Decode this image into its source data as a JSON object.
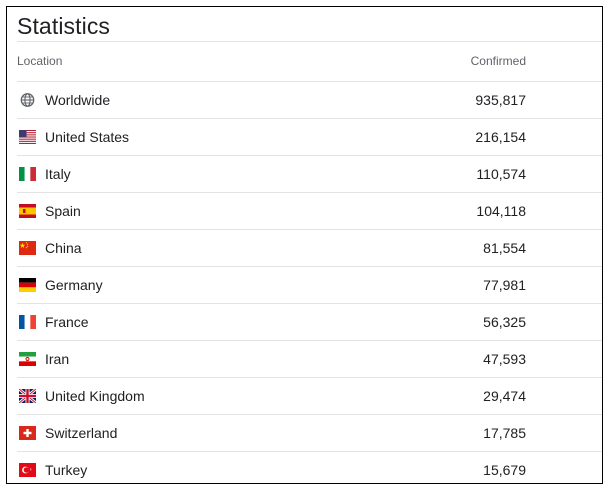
{
  "title": "Statistics",
  "columns": {
    "location": "Location",
    "confirmed": "Confirmed"
  },
  "rows": [
    {
      "location": "Worldwide",
      "confirmed": "935,817",
      "icon": "globe-icon"
    },
    {
      "location": "United States",
      "confirmed": "216,154",
      "icon": "flag-us-icon"
    },
    {
      "location": "Italy",
      "confirmed": "110,574",
      "icon": "flag-it-icon"
    },
    {
      "location": "Spain",
      "confirmed": "104,118",
      "icon": "flag-es-icon"
    },
    {
      "location": "China",
      "confirmed": "81,554",
      "icon": "flag-cn-icon"
    },
    {
      "location": "Germany",
      "confirmed": "77,981",
      "icon": "flag-de-icon"
    },
    {
      "location": "France",
      "confirmed": "56,325",
      "icon": "flag-fr-icon"
    },
    {
      "location": "Iran",
      "confirmed": "47,593",
      "icon": "flag-ir-icon"
    },
    {
      "location": "United Kingdom",
      "confirmed": "29,474",
      "icon": "flag-gb-icon"
    },
    {
      "location": "Switzerland",
      "confirmed": "17,785",
      "icon": "flag-ch-icon"
    },
    {
      "location": "Turkey",
      "confirmed": "15,679",
      "icon": "flag-tr-icon"
    }
  ]
}
